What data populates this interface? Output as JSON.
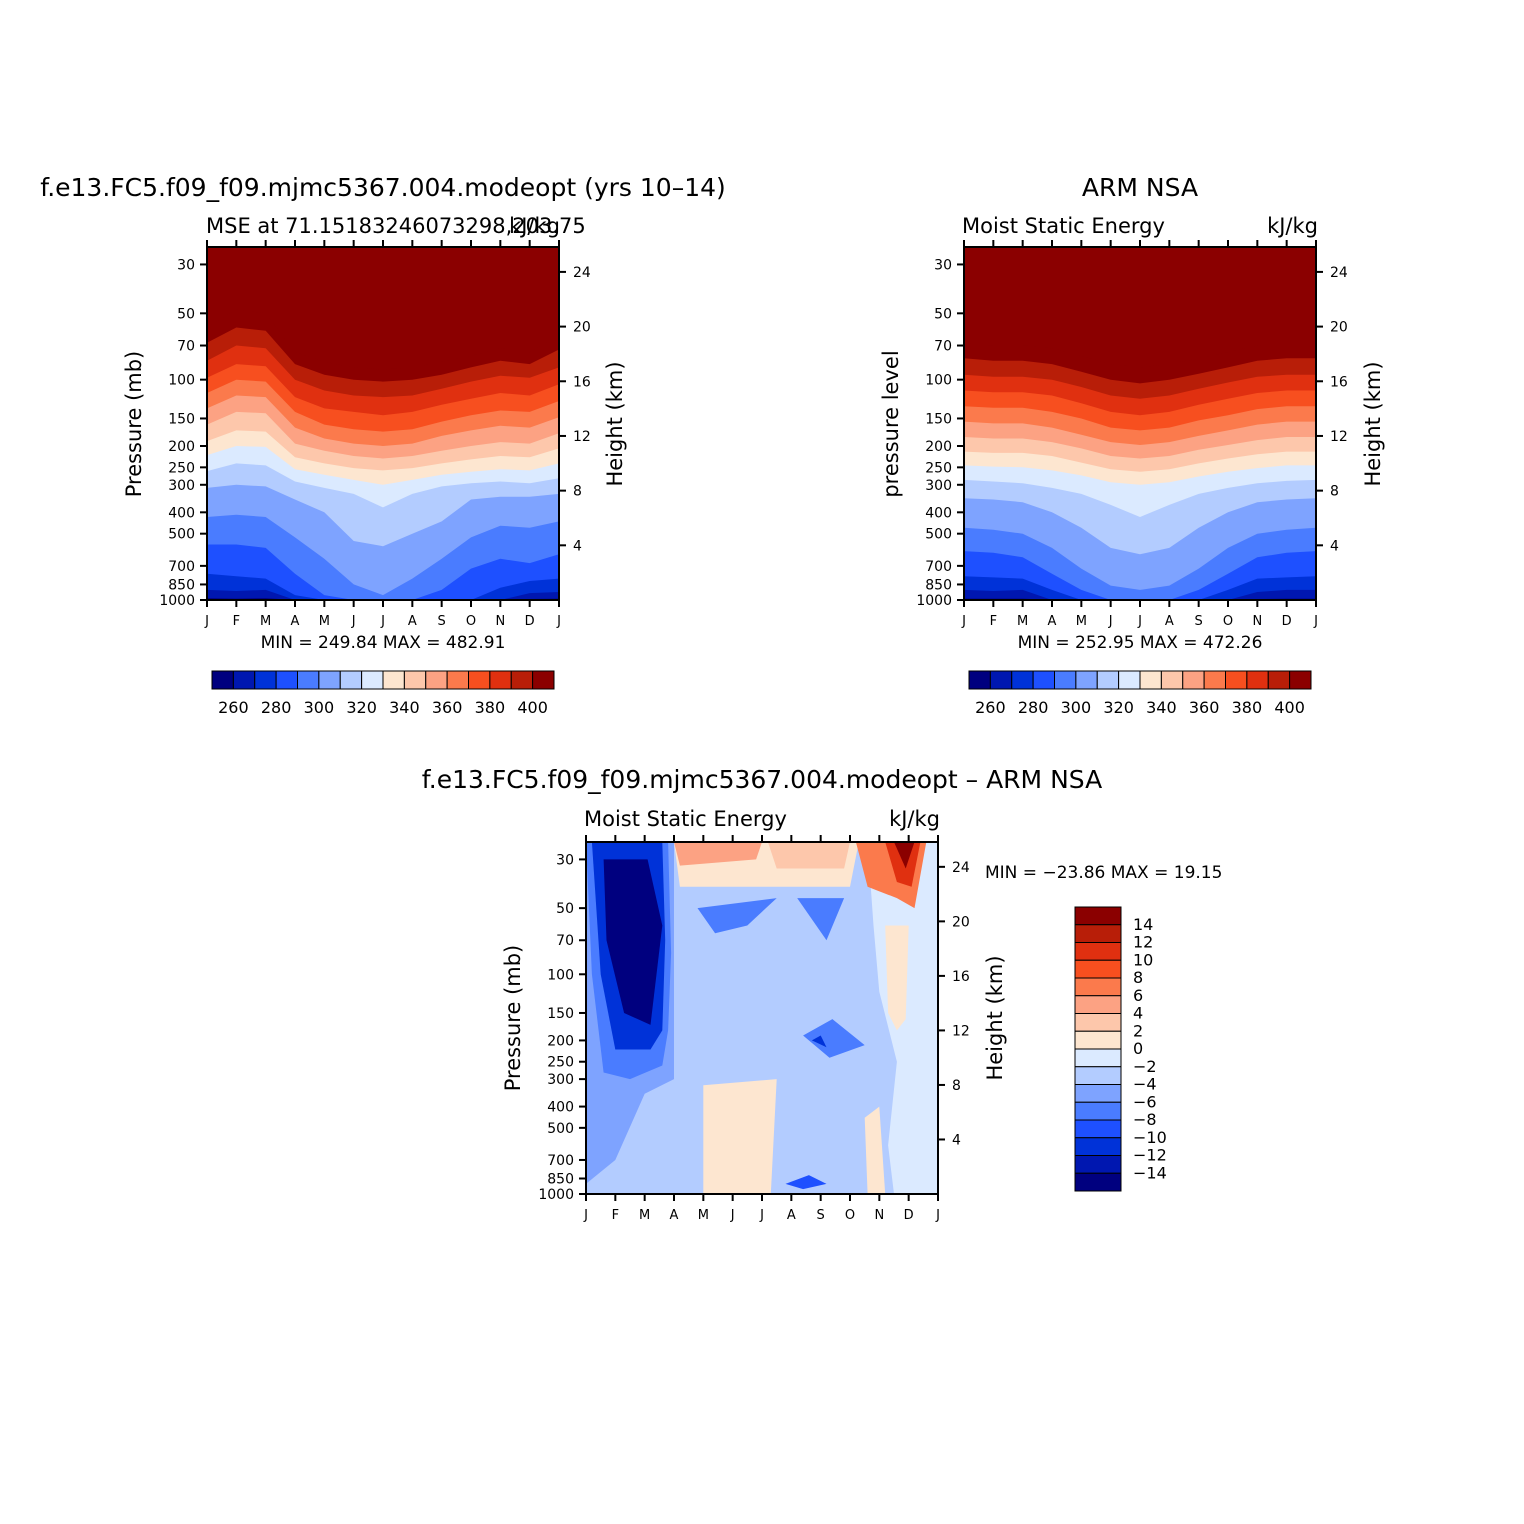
{
  "panels": [
    {
      "id": "model",
      "title": "f.e13.FC5.f09_f09.mjmc5367.004.modeopt (yrs 10–14)",
      "left_label": "MSE at 71.15183246073298,203.75",
      "right_label": "kJ/kg",
      "ylabel_left": "Pressure (mb)",
      "ylabel_right": "Height (km)",
      "minmax": "MIN = 249.84 MAX = 482.91"
    },
    {
      "id": "obs",
      "title": "ARM NSA",
      "left_label": "Moist Static Energy",
      "right_label": "kJ/kg",
      "ylabel_left": "pressure level",
      "ylabel_right": "Height (km)",
      "minmax": "MIN = 252.95 MAX = 472.26"
    },
    {
      "id": "diff",
      "title": "f.e13.FC5.f09_f09.mjmc5367.004.modeopt – ARM NSA",
      "left_label": "Moist Static Energy",
      "right_label": "kJ/kg",
      "ylabel_left": "Pressure (mb)",
      "ylabel_right": "Height (km)",
      "minmax": "MIN = −23.86 MAX =  19.15"
    }
  ],
  "chart_data": [
    {
      "type": "heatmap",
      "panel": "model",
      "x": [
        "J",
        "F",
        "M",
        "A",
        "M",
        "J",
        "J",
        "A",
        "S",
        "O",
        "N",
        "D",
        "J"
      ],
      "pressure_ticks": [
        30,
        50,
        70,
        100,
        150,
        200,
        250,
        300,
        400,
        500,
        700,
        850,
        1000
      ],
      "height_ticks_km": [
        4,
        8,
        12,
        16,
        20,
        24
      ],
      "ylim_mb": [
        1000,
        25
      ],
      "min": 249.84,
      "max": 482.91,
      "colorbar_labels": [
        "260",
        "280",
        "300",
        "320",
        "340",
        "360",
        "380",
        "400"
      ],
      "colorbar_levels": [
        250,
        260,
        270,
        280,
        290,
        300,
        310,
        320,
        330,
        340,
        350,
        360,
        370,
        380,
        390,
        400,
        410
      ],
      "contour_boundaries_mb": [
        {
          "level": 410,
          "p": [
            58,
            48,
            50,
            75,
            83,
            88,
            90,
            88,
            83,
            78,
            72,
            75,
            63
          ]
        },
        {
          "level": 400,
          "p": [
            68,
            58,
            60,
            85,
            95,
            100,
            102,
            100,
            95,
            88,
            82,
            85,
            73
          ]
        },
        {
          "level": 390,
          "p": [
            82,
            70,
            72,
            100,
            112,
            118,
            120,
            118,
            110,
            102,
            96,
            98,
            88
          ]
        },
        {
          "level": 380,
          "p": [
            98,
            85,
            87,
            120,
            135,
            140,
            145,
            140,
            130,
            122,
            115,
            118,
            105
          ]
        },
        {
          "level": 370,
          "p": [
            115,
            100,
            102,
            140,
            160,
            168,
            172,
            168,
            155,
            145,
            138,
            140,
            125
          ]
        },
        {
          "level": 360,
          "p": [
            135,
            118,
            120,
            165,
            185,
            195,
            200,
            195,
            180,
            170,
            162,
            165,
            148
          ]
        },
        {
          "level": 350,
          "p": [
            160,
            140,
            142,
            195,
            210,
            222,
            228,
            222,
            210,
            200,
            192,
            195,
            175
          ]
        },
        {
          "level": 340,
          "p": [
            190,
            170,
            172,
            225,
            240,
            252,
            258,
            252,
            240,
            230,
            222,
            225,
            205
          ]
        },
        {
          "level": 330,
          "p": [
            220,
            200,
            202,
            255,
            270,
            285,
            300,
            285,
            270,
            262,
            255,
            258,
            240
          ]
        },
        {
          "level": 320,
          "p": [
            260,
            240,
            245,
            290,
            310,
            330,
            380,
            330,
            305,
            295,
            290,
            295,
            280
          ]
        },
        {
          "level": 310,
          "p": [
            310,
            300,
            305,
            350,
            400,
            540,
            570,
            500,
            440,
            350,
            340,
            340,
            330
          ]
        },
        {
          "level": 300,
          "p": [
            420,
            410,
            420,
            520,
            650,
            850,
            950,
            800,
            650,
            520,
            460,
            470,
            440
          ]
        },
        {
          "level": 290,
          "p": [
            560,
            560,
            580,
            760,
            950,
            1000,
            1000,
            1000,
            900,
            720,
            650,
            680,
            620
          ]
        },
        {
          "level": 280,
          "p": [
            760,
            780,
            800,
            950,
            1000,
            1000,
            1000,
            1000,
            1000,
            1000,
            880,
            820,
            800
          ]
        },
        {
          "level": 270,
          "p": [
            900,
            910,
            900,
            1000,
            1000,
            1000,
            1000,
            1000,
            1000,
            1000,
            1000,
            930,
            920
          ]
        },
        {
          "level": 260,
          "p": [
            980,
            985,
            980,
            1000,
            1000,
            1000,
            1000,
            1000,
            1000,
            1000,
            1000,
            990,
            985
          ]
        }
      ]
    },
    {
      "type": "heatmap",
      "panel": "obs",
      "x": [
        "J",
        "F",
        "M",
        "A",
        "M",
        "J",
        "J",
        "A",
        "S",
        "O",
        "N",
        "D",
        "J"
      ],
      "pressure_ticks": [
        30,
        50,
        70,
        100,
        150,
        200,
        250,
        300,
        400,
        500,
        700,
        850,
        1000
      ],
      "height_ticks_km": [
        4,
        8,
        12,
        16,
        20,
        24
      ],
      "ylim_mb": [
        1000,
        25
      ],
      "min": 252.95,
      "max": 472.26,
      "colorbar_labels": [
        "260",
        "280",
        "300",
        "320",
        "340",
        "360",
        "380",
        "400"
      ],
      "colorbar_levels": [
        250,
        260,
        270,
        280,
        290,
        300,
        310,
        320,
        330,
        340,
        350,
        360,
        370,
        380,
        390,
        400,
        410
      ],
      "contour_boundaries_mb": [
        {
          "level": 410,
          "p": [
            68,
            70,
            70,
            72,
            78,
            85,
            88,
            85,
            80,
            75,
            70,
            68,
            68
          ]
        },
        {
          "level": 400,
          "p": [
            80,
            82,
            82,
            85,
            92,
            100,
            104,
            100,
            94,
            88,
            82,
            80,
            80
          ]
        },
        {
          "level": 390,
          "p": [
            95,
            97,
            97,
            100,
            108,
            118,
            122,
            118,
            110,
            103,
            97,
            95,
            95
          ]
        },
        {
          "level": 380,
          "p": [
            112,
            114,
            114,
            118,
            128,
            140,
            145,
            140,
            130,
            122,
            115,
            112,
            112
          ]
        },
        {
          "level": 370,
          "p": [
            132,
            134,
            134,
            140,
            150,
            165,
            170,
            165,
            153,
            145,
            136,
            132,
            132
          ]
        },
        {
          "level": 360,
          "p": [
            155,
            158,
            158,
            165,
            178,
            192,
            198,
            192,
            180,
            170,
            160,
            155,
            155
          ]
        },
        {
          "level": 350,
          "p": [
            182,
            185,
            185,
            192,
            205,
            222,
            228,
            222,
            208,
            198,
            188,
            182,
            182
          ]
        },
        {
          "level": 340,
          "p": [
            212,
            215,
            215,
            222,
            238,
            255,
            262,
            255,
            240,
            228,
            218,
            212,
            212
          ]
        },
        {
          "level": 330,
          "p": [
            245,
            248,
            250,
            258,
            272,
            292,
            300,
            292,
            275,
            262,
            252,
            245,
            245
          ]
        },
        {
          "level": 320,
          "p": [
            285,
            290,
            295,
            310,
            330,
            370,
            420,
            370,
            330,
            310,
            295,
            288,
            285
          ]
        },
        {
          "level": 310,
          "p": [
            345,
            350,
            360,
            400,
            470,
            580,
            620,
            580,
            470,
            400,
            360,
            350,
            345
          ]
        },
        {
          "level": 300,
          "p": [
            470,
            480,
            500,
            580,
            720,
            860,
            900,
            860,
            720,
            580,
            500,
            480,
            470
          ]
        },
        {
          "level": 290,
          "p": [
            600,
            610,
            640,
            760,
            900,
            1000,
            1000,
            1000,
            900,
            760,
            640,
            610,
            600
          ]
        },
        {
          "level": 280,
          "p": [
            780,
            790,
            800,
            900,
            1000,
            1000,
            1000,
            1000,
            1000,
            900,
            800,
            790,
            780
          ]
        },
        {
          "level": 270,
          "p": [
            900,
            910,
            900,
            1000,
            1000,
            1000,
            1000,
            1000,
            1000,
            1000,
            920,
            900,
            900
          ]
        },
        {
          "level": 260,
          "p": [
            985,
            985,
            985,
            1000,
            1000,
            1000,
            1000,
            1000,
            1000,
            1000,
            990,
            985,
            985
          ]
        }
      ]
    },
    {
      "type": "heatmap",
      "panel": "diff",
      "x": [
        "J",
        "F",
        "M",
        "A",
        "M",
        "J",
        "J",
        "A",
        "S",
        "O",
        "N",
        "D",
        "J"
      ],
      "pressure_ticks": [
        30,
        50,
        70,
        100,
        150,
        200,
        250,
        300,
        400,
        500,
        700,
        850,
        1000
      ],
      "height_ticks_km": [
        4,
        8,
        12,
        16,
        20,
        24
      ],
      "ylim_mb": [
        1000,
        25
      ],
      "min": -23.86,
      "max": 19.15,
      "colorbar_labels": [
        "14",
        "12",
        "10",
        "8",
        "6",
        "4",
        "2",
        "0",
        "−2",
        "−4",
        "−6",
        "−8",
        "−10",
        "−12",
        "−14"
      ],
      "colorbar_levels": [
        -16,
        -14,
        -12,
        -10,
        -8,
        -6,
        -4,
        -2,
        0,
        2,
        4,
        6,
        8,
        10,
        12,
        14,
        16
      ],
      "regions": [
        {
          "level": -3,
          "desc": "background light blue"
        },
        {
          "level": -15,
          "desc": "Jan-Mar upper troposphere/stratosphere deep negative"
        },
        {
          "level": 1,
          "desc": "May-Jul mid/lower troposphere positive"
        },
        {
          "level": 5,
          "desc": "Apr-Sep 25-40 mb positive band"
        },
        {
          "level": 15,
          "desc": "Nov-Dec upper stratosphere strong positive"
        }
      ]
    }
  ],
  "colors": {
    "palette": [
      "#00007f",
      "#0017b0",
      "#0032d8",
      "#1e50ff",
      "#4a7cff",
      "#7ea3ff",
      "#b3ccff",
      "#dbeaff",
      "#fde6d0",
      "#fdc7ab",
      "#fca283",
      "#fb7a4c",
      "#f74f1f",
      "#e03010",
      "#b81e08",
      "#8b0000"
    ]
  }
}
